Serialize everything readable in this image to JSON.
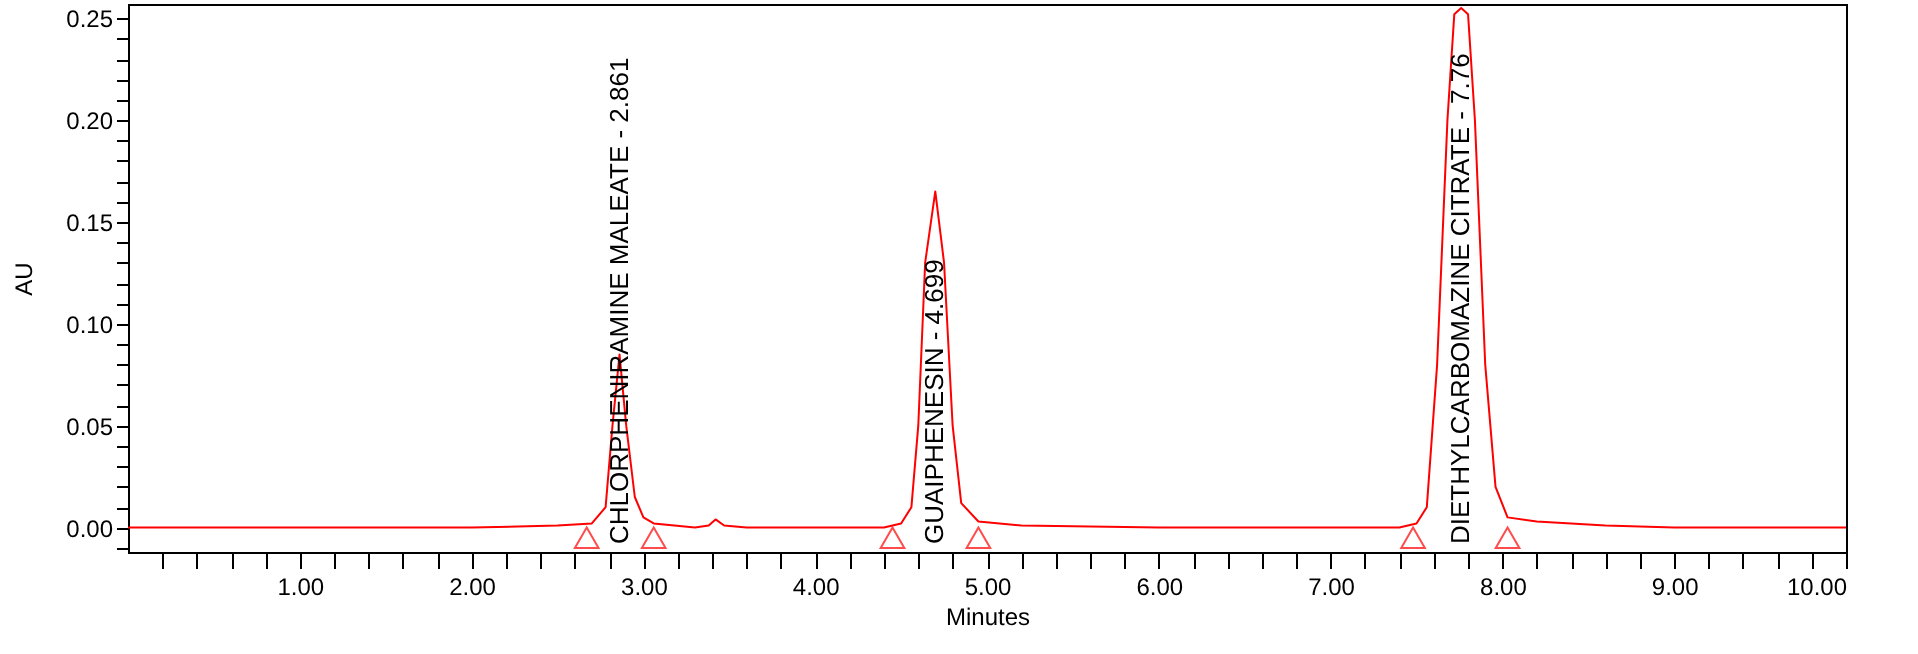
{
  "chart_data": {
    "type": "line",
    "xlabel": "Minutes",
    "ylabel": "AU",
    "xlim": [
      0,
      10
    ],
    "ylim": [
      -0.012,
      0.257
    ],
    "xticks": [
      {
        "value": 0.2,
        "label": null
      },
      {
        "value": 0.4,
        "label": null
      },
      {
        "value": 0.6,
        "label": null
      },
      {
        "value": 0.8,
        "label": null
      },
      {
        "value": 1,
        "label": "1.00"
      },
      {
        "value": 1.2,
        "label": null
      },
      {
        "value": 1.4,
        "label": null
      },
      {
        "value": 1.6,
        "label": null
      },
      {
        "value": 1.8,
        "label": null
      },
      {
        "value": 2,
        "label": "2.00"
      },
      {
        "value": 2.2,
        "label": null
      },
      {
        "value": 2.4,
        "label": null
      },
      {
        "value": 2.6,
        "label": null
      },
      {
        "value": 2.8,
        "label": null
      },
      {
        "value": 3,
        "label": "3.00"
      },
      {
        "value": 3.2,
        "label": null
      },
      {
        "value": 3.4,
        "label": null
      },
      {
        "value": 3.6,
        "label": null
      },
      {
        "value": 3.8,
        "label": null
      },
      {
        "value": 4,
        "label": "4.00"
      },
      {
        "value": 4.2,
        "label": null
      },
      {
        "value": 4.4,
        "label": null
      },
      {
        "value": 4.6,
        "label": null
      },
      {
        "value": 4.8,
        "label": null
      },
      {
        "value": 5,
        "label": "5.00"
      },
      {
        "value": 5.2,
        "label": null
      },
      {
        "value": 5.4,
        "label": null
      },
      {
        "value": 5.6,
        "label": null
      },
      {
        "value": 5.8,
        "label": null
      },
      {
        "value": 6,
        "label": "6.00"
      },
      {
        "value": 6.2,
        "label": null
      },
      {
        "value": 6.4,
        "label": null
      },
      {
        "value": 6.6,
        "label": null
      },
      {
        "value": 6.8,
        "label": null
      },
      {
        "value": 7,
        "label": "7.00"
      },
      {
        "value": 7.2,
        "label": null
      },
      {
        "value": 7.4,
        "label": null
      },
      {
        "value": 7.6,
        "label": null
      },
      {
        "value": 7.8,
        "label": null
      },
      {
        "value": 8,
        "label": "8.00"
      },
      {
        "value": 8.2,
        "label": null
      },
      {
        "value": 8.4,
        "label": null
      },
      {
        "value": 8.6,
        "label": null
      },
      {
        "value": 8.8,
        "label": null
      },
      {
        "value": 9,
        "label": "9.00"
      },
      {
        "value": 9.2,
        "label": null
      },
      {
        "value": 9.4,
        "label": null
      },
      {
        "value": 9.6,
        "label": null
      },
      {
        "value": 9.8,
        "label": null
      },
      {
        "value": 10,
        "label": "10.00"
      }
    ],
    "yticks": [
      {
        "value": -0.01,
        "label": null
      },
      {
        "value": 0,
        "label": "0.00"
      },
      {
        "value": 0.01,
        "label": null
      },
      {
        "value": 0.02,
        "label": null
      },
      {
        "value": 0.03,
        "label": null
      },
      {
        "value": 0.04,
        "label": null
      },
      {
        "value": 0.05,
        "label": "0.05"
      },
      {
        "value": 0.06,
        "label": null
      },
      {
        "value": 0.07,
        "label": null
      },
      {
        "value": 0.08,
        "label": null
      },
      {
        "value": 0.09,
        "label": null
      },
      {
        "value": 0.1,
        "label": "0.10"
      },
      {
        "value": 0.11,
        "label": null
      },
      {
        "value": 0.12,
        "label": null
      },
      {
        "value": 0.13,
        "label": null
      },
      {
        "value": 0.14,
        "label": null
      },
      {
        "value": 0.15,
        "label": "0.15"
      },
      {
        "value": 0.16,
        "label": null
      },
      {
        "value": 0.17,
        "label": null
      },
      {
        "value": 0.18,
        "label": null
      },
      {
        "value": 0.19,
        "label": null
      },
      {
        "value": 0.2,
        "label": "0.20"
      },
      {
        "value": 0.21,
        "label": null
      },
      {
        "value": 0.22,
        "label": null
      },
      {
        "value": 0.23,
        "label": null
      },
      {
        "value": 0.24,
        "label": null
      },
      {
        "value": 0.25,
        "label": "0.25"
      }
    ],
    "series": [
      {
        "color": "#ff0000",
        "x": [
          0,
          2.0,
          2.5,
          2.7,
          2.78,
          2.82,
          2.861,
          2.9,
          2.95,
          3.0,
          3.06,
          3.3,
          3.38,
          3.42,
          3.47,
          3.6,
          4.4,
          4.5,
          4.56,
          4.6,
          4.64,
          4.699,
          4.75,
          4.8,
          4.85,
          4.95,
          5.2,
          6.0,
          7.4,
          7.5,
          7.56,
          7.62,
          7.68,
          7.72,
          7.76,
          7.8,
          7.84,
          7.9,
          7.96,
          8.03,
          8.2,
          8.6,
          9,
          10
        ],
        "values": [
          0,
          0,
          0.001,
          0.002,
          0.01,
          0.05,
          0.085,
          0.05,
          0.015,
          0.005,
          0.002,
          0,
          0.001,
          0.004,
          0.001,
          0,
          0,
          0.002,
          0.01,
          0.05,
          0.13,
          0.165,
          0.13,
          0.05,
          0.012,
          0.003,
          0.001,
          0,
          0,
          0.002,
          0.01,
          0.08,
          0.2,
          0.252,
          0.255,
          0.252,
          0.2,
          0.08,
          0.02,
          0.005,
          0.003,
          0.001,
          0,
          0
        ]
      },
      {
        "type": "scatter",
        "color": "#ff0000",
        "marker": "triangle",
        "x": [
          2.67,
          3.06,
          4.45,
          4.95,
          7.48,
          8.03
        ],
        "values": [
          -0.005,
          -0.005,
          -0.005,
          -0.005,
          -0.005,
          -0.005
        ]
      }
    ],
    "annotations": [
      "CHLORPHENIRAMINE MALEATE - 2.861",
      "GUAIPHENESIN - 4.699",
      "DIETHYLCARBOMAZINE CITRATE - 7.76"
    ]
  }
}
